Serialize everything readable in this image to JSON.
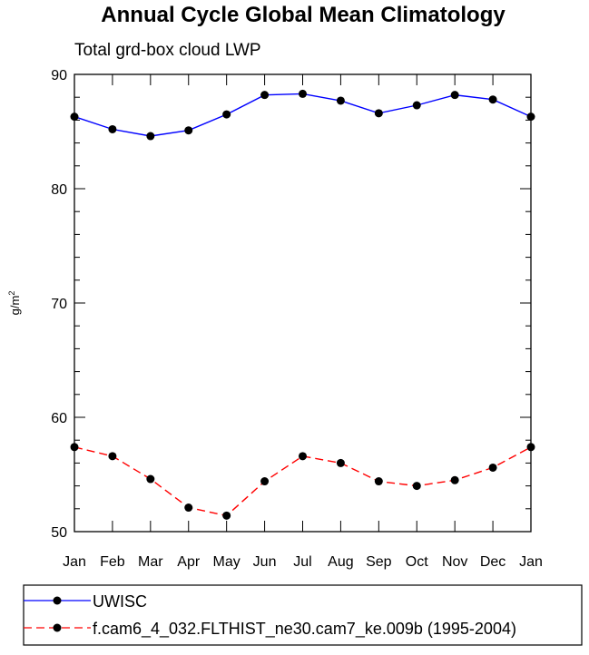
{
  "chart_data": {
    "type": "line",
    "title": "Annual Cycle Global Mean Climatology",
    "subtitle": "Total grd-box cloud LWP",
    "xlabel": "",
    "ylabel_base": "g/m",
    "ylabel_sup": "2",
    "ylim": [
      50,
      90
    ],
    "yticks": [
      "50",
      "60",
      "70",
      "80",
      "90"
    ],
    "categories": [
      "Jan",
      "Feb",
      "Mar",
      "Apr",
      "May",
      "Jun",
      "Jul",
      "Aug",
      "Sep",
      "Oct",
      "Nov",
      "Dec",
      "Jan"
    ],
    "series": [
      {
        "name": "UWISC",
        "color": "#0000ff",
        "style": "solid",
        "values": [
          86.3,
          85.2,
          84.6,
          85.1,
          86.5,
          88.2,
          88.3,
          87.7,
          86.6,
          87.3,
          88.2,
          87.8,
          86.3
        ]
      },
      {
        "name": "f.cam6_4_032.FLTHIST_ne30.cam7_ke.009b (1995-2004)",
        "color": "#ff0000",
        "style": "dashed",
        "values": [
          57.4,
          56.6,
          54.6,
          52.1,
          51.4,
          54.4,
          56.6,
          56.0,
          54.4,
          54.0,
          54.5,
          55.6,
          57.4
        ]
      }
    ],
    "legend_position": "bottom"
  }
}
